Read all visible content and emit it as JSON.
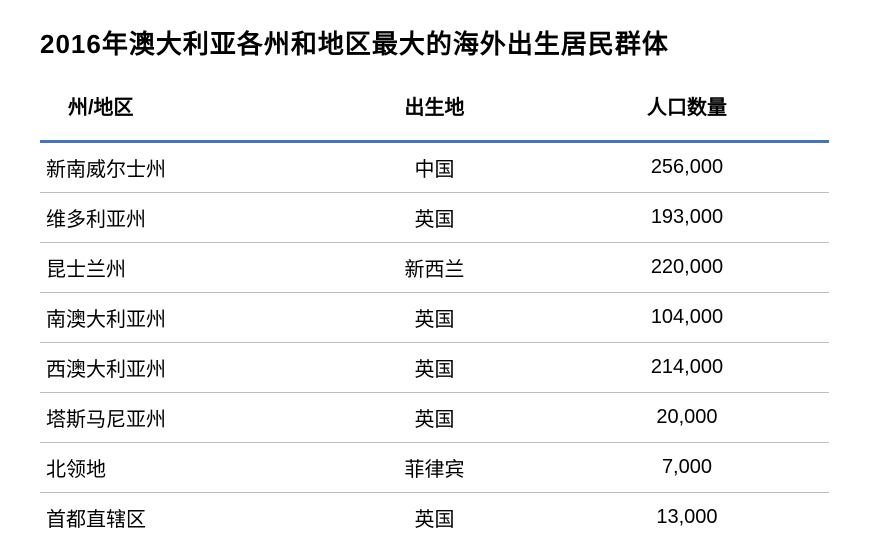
{
  "title": "2016年澳大利亚各州和地区最大的海外出生居民群体",
  "table": {
    "type": "table",
    "header_border_color": "#4472c4",
    "row_border_color": "#bfbfbf",
    "text_color": "#000000",
    "header_fontsize": 20,
    "cell_fontsize": 20,
    "columns": [
      {
        "key": "state",
        "label": "州/地区",
        "align": "left"
      },
      {
        "key": "origin",
        "label": "出生地",
        "align": "center"
      },
      {
        "key": "pop",
        "label": "人口数量",
        "align": "center"
      }
    ],
    "rows": [
      {
        "state": "新南威尔士州",
        "origin": "中国",
        "pop": "256,000"
      },
      {
        "state": "维多利亚州",
        "origin": "英国",
        "pop": "193,000"
      },
      {
        "state": "昆士兰州",
        "origin": "新西兰",
        "pop": "220,000"
      },
      {
        "state": "南澳大利亚州",
        "origin": "英国",
        "pop": "104,000"
      },
      {
        "state": "西澳大利亚州",
        "origin": "英国",
        "pop": "214,000"
      },
      {
        "state": "塔斯马尼亚州",
        "origin": "英国",
        "pop": "20,000"
      },
      {
        "state": "北领地",
        "origin": "菲律宾",
        "pop": "7,000"
      },
      {
        "state": "首都直辖区",
        "origin": "英国",
        "pop": "13,000"
      }
    ]
  }
}
